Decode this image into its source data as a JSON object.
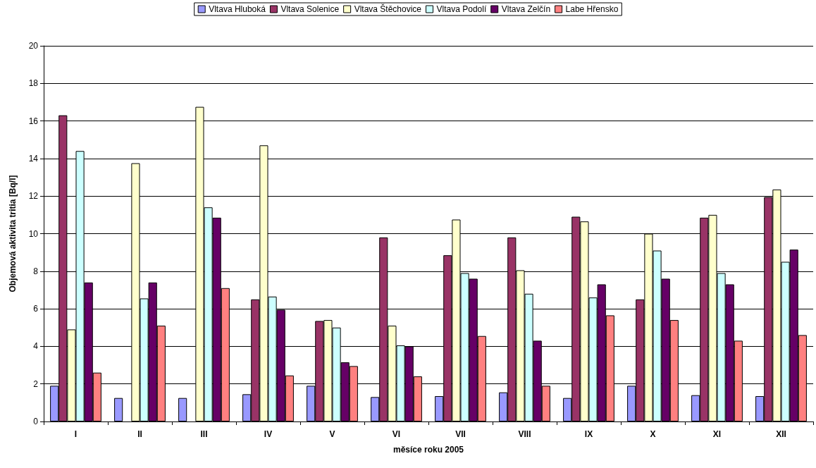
{
  "chart_data": {
    "type": "bar",
    "xlabel": "měsíce roku 2005",
    "ylabel": "Objemová aktivita tritia [Bq/l]",
    "categories": [
      "I",
      "II",
      "III",
      "IV",
      "V",
      "VI",
      "VII",
      "VIII",
      "IX",
      "X",
      "XI",
      "XII"
    ],
    "series": [
      {
        "name": "Vltava Hluboká",
        "color": "#9999ff",
        "values": [
          1.9,
          1.25,
          1.25,
          1.45,
          1.9,
          1.3,
          1.35,
          1.55,
          1.25,
          1.9,
          1.4,
          1.35
        ]
      },
      {
        "name": "Vltava Solenice",
        "color": "#993366",
        "values": [
          16.3,
          null,
          null,
          6.5,
          5.35,
          9.8,
          8.85,
          9.8,
          10.9,
          6.5,
          10.85,
          11.95
        ]
      },
      {
        "name": "Vltava Štěchovice",
        "color": "#ffffcc",
        "values": [
          4.9,
          13.75,
          16.75,
          14.7,
          5.4,
          5.1,
          10.75,
          8.05,
          10.65,
          10.0,
          11.0,
          12.35
        ]
      },
      {
        "name": "Vltava Podolí",
        "color": "#ccffff",
        "values": [
          14.4,
          6.55,
          11.4,
          6.65,
          5.0,
          4.05,
          7.9,
          6.8,
          6.6,
          9.1,
          7.9,
          8.5
        ]
      },
      {
        "name": "Vltava Zelčín",
        "color": "#660066",
        "values": [
          7.4,
          7.4,
          10.85,
          5.95,
          3.15,
          4.0,
          7.6,
          4.3,
          7.3,
          7.6,
          7.3,
          9.15
        ]
      },
      {
        "name": "Labe Hřensko",
        "color": "#ff8080",
        "values": [
          2.6,
          5.1,
          7.1,
          2.45,
          2.95,
          2.4,
          4.55,
          1.9,
          5.65,
          5.4,
          4.3,
          4.6
        ]
      }
    ],
    "ylim": [
      0,
      20
    ],
    "yticks": [
      0,
      2,
      4,
      6,
      8,
      10,
      12,
      14,
      16,
      18,
      20
    ],
    "grid": "y",
    "legend": "top"
  }
}
